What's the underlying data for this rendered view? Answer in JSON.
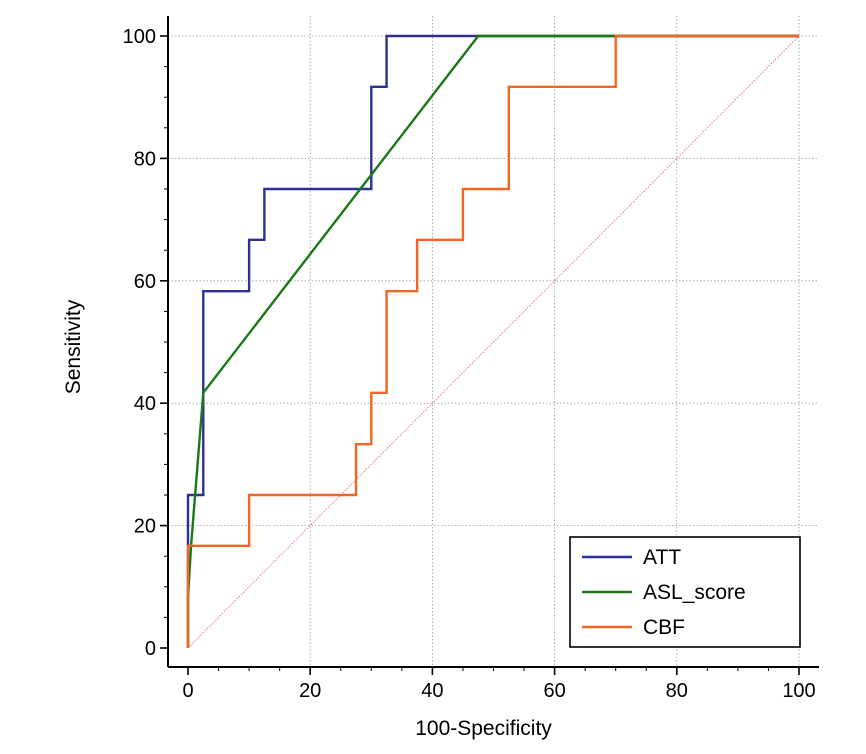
{
  "chart_data": {
    "type": "line",
    "title": "",
    "xlabel": "100-Specificity",
    "ylabel": "Sensitivity",
    "xlim": [
      0,
      100
    ],
    "ylim": [
      0,
      100
    ],
    "xticks": [
      0,
      20,
      40,
      60,
      80,
      100
    ],
    "yticks": [
      0,
      20,
      40,
      60,
      80,
      100
    ],
    "grid": true,
    "legend_position": "bottom-right",
    "reference_line": {
      "name": "chance",
      "color": "#e07070",
      "points": [
        [
          0,
          0
        ],
        [
          100,
          100
        ]
      ]
    },
    "series": [
      {
        "name": "ATT",
        "color": "#2e3192",
        "points": [
          [
            0,
            0
          ],
          [
            0,
            25
          ],
          [
            2.5,
            25
          ],
          [
            2.5,
            41.7
          ],
          [
            2.5,
            58.3
          ],
          [
            10,
            58.3
          ],
          [
            10,
            66.7
          ],
          [
            12.5,
            66.7
          ],
          [
            12.5,
            75
          ],
          [
            30,
            75
          ],
          [
            30,
            91.7
          ],
          [
            32.5,
            91.7
          ],
          [
            32.5,
            100
          ],
          [
            100,
            100
          ]
        ]
      },
      {
        "name": "ASL_score",
        "color": "#1a7a1a",
        "points": [
          [
            0,
            0
          ],
          [
            0,
            8.3
          ],
          [
            0.5,
            16.7
          ],
          [
            2.5,
            41.7
          ],
          [
            47.5,
            100
          ],
          [
            100,
            100
          ]
        ]
      },
      {
        "name": "CBF",
        "color": "#f26522",
        "points": [
          [
            0,
            0
          ],
          [
            0,
            16.7
          ],
          [
            10,
            16.7
          ],
          [
            10,
            25
          ],
          [
            27.5,
            25
          ],
          [
            27.5,
            33.3
          ],
          [
            30,
            33.3
          ],
          [
            30,
            41.7
          ],
          [
            32.5,
            41.7
          ],
          [
            32.5,
            58.3
          ],
          [
            37.5,
            58.3
          ],
          [
            37.5,
            66.7
          ],
          [
            45,
            66.7
          ],
          [
            45,
            75
          ],
          [
            52.5,
            75
          ],
          [
            52.5,
            91.7
          ],
          [
            70,
            91.7
          ],
          [
            70,
            100
          ],
          [
            100,
            100
          ]
        ]
      }
    ]
  }
}
